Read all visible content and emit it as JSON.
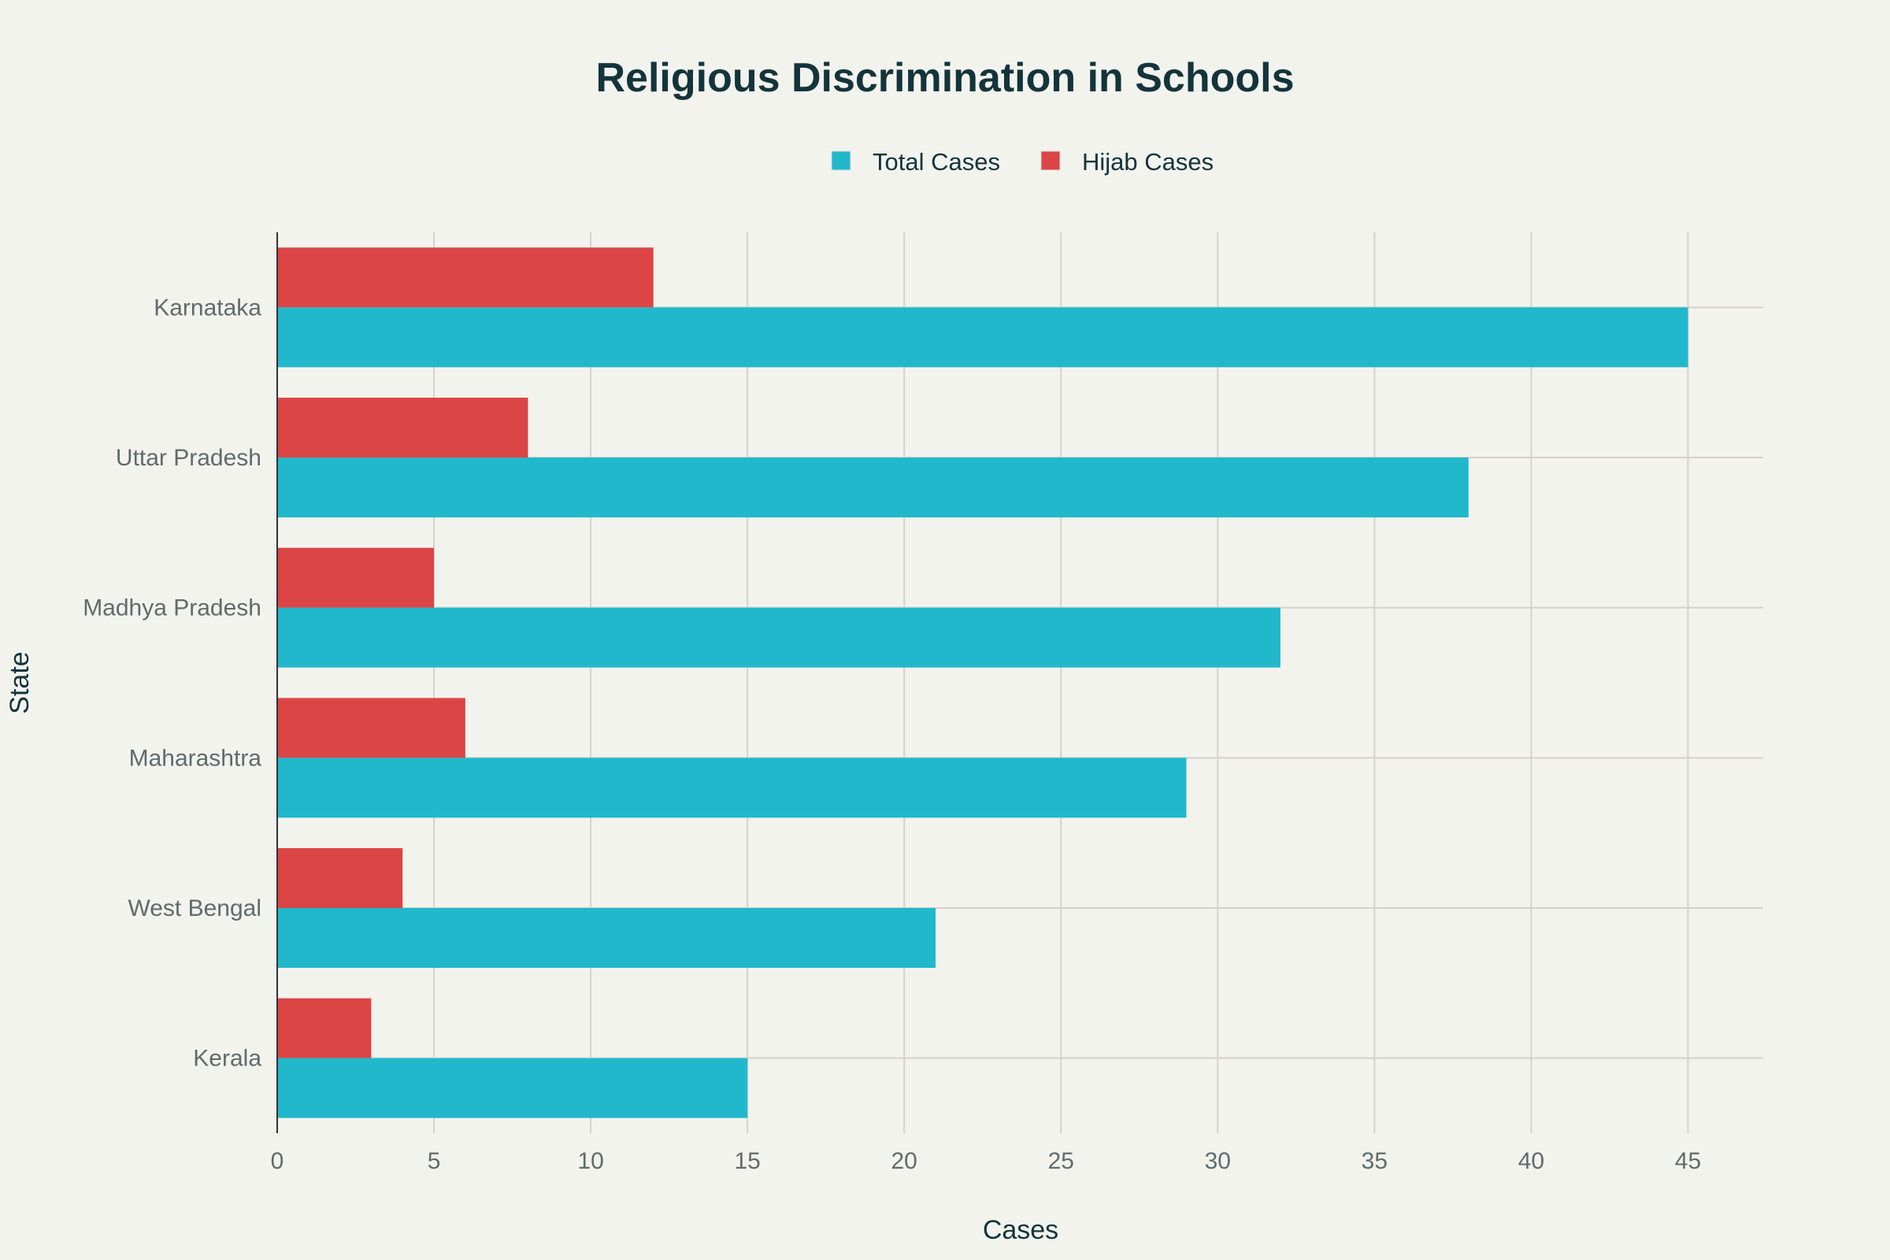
{
  "chart_data": {
    "type": "bar",
    "orientation": "horizontal",
    "title": "Religious Discrimination in Schools",
    "xlabel": "Cases",
    "ylabel": "State",
    "categories": [
      "Karnataka",
      "Uttar Pradesh",
      "Madhya Pradesh",
      "Maharashtra",
      "West Bengal",
      "Kerala"
    ],
    "series": [
      {
        "name": "Total Cases",
        "color": "#21b8cc",
        "values": [
          45,
          38,
          32,
          29,
          21,
          15
        ]
      },
      {
        "name": "Hijab Cases",
        "color": "#db4545",
        "values": [
          12,
          8,
          5,
          6,
          4,
          3
        ]
      }
    ],
    "xlim": [
      0,
      47.4
    ],
    "xticks": [
      0,
      5,
      10,
      15,
      20,
      25,
      30,
      35,
      40,
      45
    ],
    "grid": true,
    "legend_placement": "top-center",
    "background": "#f3f3ee"
  }
}
